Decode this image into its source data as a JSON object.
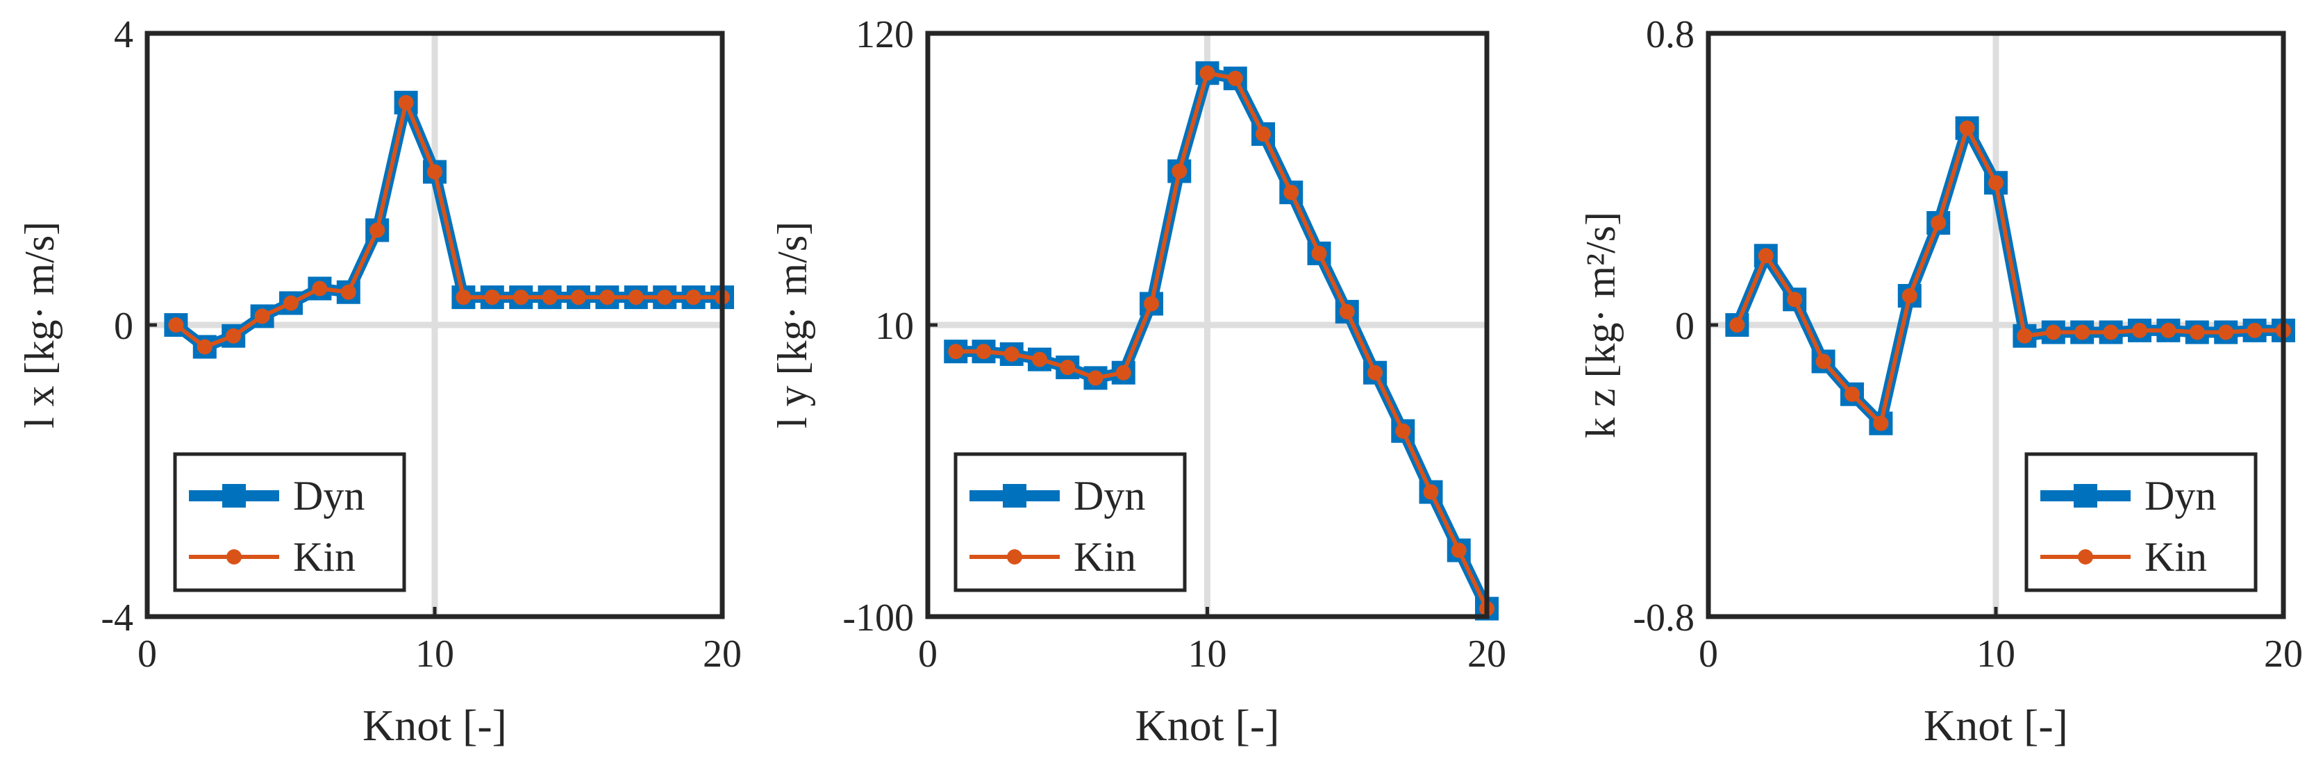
{
  "colors": {
    "dyn": "#0072BD",
    "kin": "#D95319",
    "axis": "#262626",
    "grid": "#DEDEDE",
    "background": "#FFFFFF"
  },
  "chart_data": [
    {
      "type": "line",
      "title": "",
      "xlabel": "Knot [-]",
      "ylabel": "l x [kg· m/s]",
      "xlim": [
        0,
        20
      ],
      "ylim": [
        -4,
        4
      ],
      "xticks": [
        0,
        10,
        20
      ],
      "yticks": [
        -4,
        0,
        4
      ],
      "xtick_labels": [
        "0",
        "10",
        "20"
      ],
      "ytick_labels": [
        "-4",
        "0",
        "4"
      ],
      "grid": true,
      "legend_position": "bottom-left",
      "x": [
        1,
        2,
        3,
        4,
        5,
        6,
        7,
        8,
        9,
        10,
        11,
        12,
        13,
        14,
        15,
        16,
        17,
        18,
        19,
        20
      ],
      "series": [
        {
          "name": "Dyn",
          "marker": "square",
          "values": [
            0.0,
            -0.3,
            -0.15,
            0.12,
            0.3,
            0.5,
            0.45,
            1.3,
            3.05,
            2.1,
            0.38,
            0.38,
            0.38,
            0.38,
            0.38,
            0.38,
            0.38,
            0.38,
            0.38,
            0.38
          ]
        },
        {
          "name": "Kin",
          "marker": "circle",
          "values": [
            0.0,
            -0.3,
            -0.15,
            0.12,
            0.3,
            0.5,
            0.45,
            1.3,
            3.05,
            2.1,
            0.38,
            0.38,
            0.38,
            0.38,
            0.38,
            0.38,
            0.38,
            0.38,
            0.38,
            0.38
          ]
        }
      ]
    },
    {
      "type": "line",
      "title": "",
      "xlabel": "Knot [-]",
      "ylabel": "l y [kg· m/s]",
      "xlim": [
        0,
        20
      ],
      "ylim": [
        -100,
        120
      ],
      "xticks": [
        0,
        10,
        20
      ],
      "yticks": [
        -100,
        10,
        120
      ],
      "xtick_labels": [
        "0",
        "10",
        "20"
      ],
      "ytick_labels": [
        "-100",
        "10",
        "120"
      ],
      "grid": true,
      "legend_position": "bottom-left",
      "x": [
        1,
        2,
        3,
        4,
        5,
        6,
        7,
        8,
        9,
        10,
        11,
        12,
        13,
        14,
        15,
        16,
        17,
        18,
        19,
        20
      ],
      "series": [
        {
          "name": "Dyn",
          "marker": "square",
          "values": [
            0,
            0,
            -1,
            -3,
            -6,
            -10,
            -8,
            18,
            68,
            105,
            103,
            82,
            60,
            37,
            15,
            -8,
            -30,
            -53,
            -75,
            -97
          ]
        },
        {
          "name": "Kin",
          "marker": "circle",
          "values": [
            0,
            0,
            -1,
            -3,
            -6,
            -10,
            -8,
            18,
            68,
            105,
            103,
            82,
            60,
            37,
            15,
            -8,
            -30,
            -53,
            -75,
            -97
          ]
        }
      ]
    },
    {
      "type": "line",
      "title": "",
      "xlabel": "Knot [-]",
      "ylabel": "k z [kg· m²/s]",
      "xlim": [
        0,
        20
      ],
      "ylim": [
        -0.8,
        0.8
      ],
      "xticks": [
        0,
        10,
        20
      ],
      "yticks": [
        -0.8,
        0,
        0.8
      ],
      "xtick_labels": [
        "0",
        "10",
        "20"
      ],
      "ytick_labels": [
        "-0.8",
        "0",
        "0.8"
      ],
      "grid": true,
      "legend_position": "bottom-right",
      "x": [
        1,
        2,
        3,
        4,
        5,
        6,
        7,
        8,
        9,
        10,
        11,
        12,
        13,
        14,
        15,
        16,
        17,
        18,
        19,
        20
      ],
      "series": [
        {
          "name": "Dyn",
          "marker": "square",
          "values": [
            0.0,
            0.19,
            0.07,
            -0.1,
            -0.19,
            -0.27,
            0.08,
            0.28,
            0.54,
            0.39,
            -0.03,
            -0.02,
            -0.02,
            -0.02,
            -0.015,
            -0.015,
            -0.02,
            -0.02,
            -0.015,
            -0.015
          ]
        },
        {
          "name": "Kin",
          "marker": "circle",
          "values": [
            0.0,
            0.19,
            0.07,
            -0.1,
            -0.19,
            -0.27,
            0.08,
            0.28,
            0.54,
            0.39,
            -0.03,
            -0.02,
            -0.02,
            -0.02,
            -0.015,
            -0.015,
            -0.02,
            -0.02,
            -0.015,
            -0.015
          ]
        }
      ]
    }
  ]
}
